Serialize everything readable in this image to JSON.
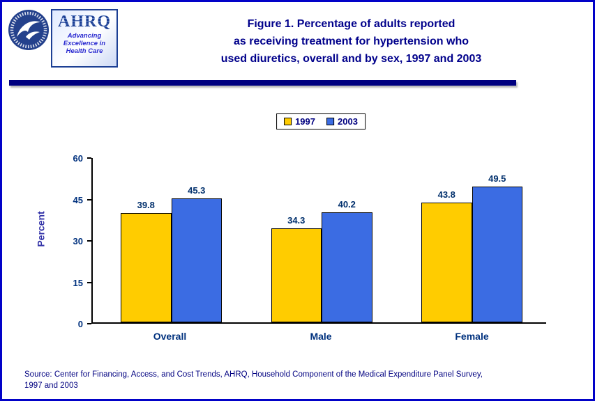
{
  "page": {
    "border_color": "#0202c8",
    "background": "#ffffff"
  },
  "header": {
    "hhs_logo_name": "hhs-seal",
    "ahrq_logo": {
      "acronym": "AHRQ",
      "tagline_lines": [
        "Advancing",
        "Excellence in",
        "Health Care"
      ]
    },
    "title_lines": [
      "Figure 1. Percentage of adults reported",
      "as receiving treatment for hypertension who",
      "used diuretics, overall and by sex, 1997 and 2003"
    ],
    "title_color": "#00008b"
  },
  "chart_data": {
    "type": "bar",
    "title": "Figure 1. Percentage of adults reported as receiving treatment for hypertension who used diuretics, overall and by sex, 1997 and 2003",
    "categories": [
      "Overall",
      "Male",
      "Female"
    ],
    "series": [
      {
        "name": "1997",
        "color": "#ffcc00",
        "values": [
          39.8,
          34.3,
          43.8
        ]
      },
      {
        "name": "2003",
        "color": "#3b6ce3",
        "values": [
          45.3,
          40.2,
          49.5
        ]
      }
    ],
    "xlabel": "",
    "ylabel": "Percent",
    "ylim": [
      0,
      60
    ],
    "yticks": [
      0,
      15,
      30,
      45,
      60
    ],
    "grid": false,
    "legend_position": "top",
    "bar_value_labels": true
  },
  "footer": {
    "source_lines": [
      "Source: Center for Financing, Access, and Cost Trends, AHRQ, Household Component of the Medical Expenditure Panel Survey,",
      "1997 and 2003"
    ]
  }
}
